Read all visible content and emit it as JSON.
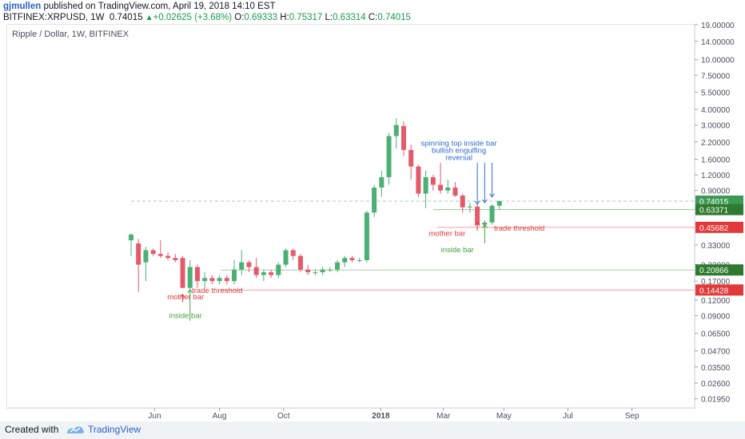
{
  "header": {
    "author": "gjmullen",
    "published_text": "published on TradingView.com, April 19, 2018 14:10 EST",
    "symbol": "BITFINEX:XRPUSD, 1W",
    "last": "0.74015",
    "change": "+0.02625 (+3.68%)",
    "open_label": "O:",
    "open": "0.69333",
    "high_label": "H:",
    "high": "0.75317",
    "low_label": "L:",
    "low": "0.63314",
    "close_label": "C:",
    "close": "0.74015"
  },
  "footer": {
    "created_with": "Created with",
    "brand": "TradingView"
  },
  "colors": {
    "up": "#4caf74",
    "down": "#e35a6b",
    "annotation_red": "#e23a3a",
    "annotation_green": "#45a045",
    "annotation_blue": "#2f6bd0",
    "price_label_green": "#3d9a55",
    "price_label_dark_green": "#2e7a2e",
    "price_label_red": "#e23a3a"
  },
  "chart_data": {
    "type": "candlestick",
    "title": "Ripple / Dollar, 1W, BITFINEX",
    "y_scale": "log",
    "ylim": [
      0.0165,
      19.0
    ],
    "x_scale": "weeks",
    "xlim_weeks": [
      0,
      58.5
    ],
    "x_tick_labels": [
      {
        "label": "Jun",
        "week": 3.2
      },
      {
        "label": "Aug",
        "week": 12.0
      },
      {
        "label": "Oct",
        "week": 20.7
      },
      {
        "label": "2018",
        "week": 33.9
      },
      {
        "label": "Mar",
        "week": 42.4
      },
      {
        "label": "May",
        "week": 50.6
      },
      {
        "label": "Jul",
        "week": 59.3
      },
      {
        "label": "Sep",
        "week": 68.0
      }
    ],
    "y_tick_labels": [
      "19.00000",
      "14.00000",
      "10.00000",
      "7.50000",
      "5.50000",
      "4.00000",
      "3.00000",
      "2.20000",
      "1.60000",
      "1.20000",
      "0.90000",
      "0.33000",
      "0.23000",
      "0.17000",
      "0.12000",
      "0.09000",
      "0.06500",
      "0.04700",
      "0.03500",
      "0.02600",
      "0.01950"
    ],
    "price_labels": [
      {
        "value": 0.74015,
        "text": "0.74015",
        "color": "#3d9a55"
      },
      {
        "value": 0.63371,
        "text": "0.63371",
        "color": "#2e7a2e"
      },
      {
        "value": 0.45682,
        "text": "0.45682",
        "color": "#e23a3a"
      },
      {
        "value": 0.20866,
        "text": "0.20866",
        "color": "#2e7a2e"
      },
      {
        "value": 0.14428,
        "text": "0.14428",
        "color": "#e23a3a"
      }
    ],
    "horizontal_lines": [
      {
        "value": 0.74015,
        "color": "#9fd3ae",
        "dashed": true,
        "from_week": 0
      },
      {
        "value": 0.63371,
        "color": "#9bc79b",
        "dashed": false,
        "from_week": 41
      },
      {
        "value": 0.45682,
        "color": "#f1a0a0",
        "dashed": false,
        "from_week": 41.5
      },
      {
        "value": 0.20866,
        "color": "#a8cfa8",
        "dashed": false,
        "from_week": 12.2
      },
      {
        "value": 0.14428,
        "color": "#f1a0a0",
        "dashed": false,
        "from_week": 12.2
      }
    ],
    "candles": [
      {
        "o": 0.36,
        "h": 0.41,
        "l": 0.27,
        "c": 0.4
      },
      {
        "o": 0.34,
        "h": 0.37,
        "l": 0.14,
        "c": 0.23
      },
      {
        "o": 0.24,
        "h": 0.32,
        "l": 0.17,
        "c": 0.3
      },
      {
        "o": 0.3,
        "h": 0.31,
        "l": 0.27,
        "c": 0.28
      },
      {
        "o": 0.28,
        "h": 0.36,
        "l": 0.26,
        "c": 0.27
      },
      {
        "o": 0.27,
        "h": 0.29,
        "l": 0.25,
        "c": 0.26
      },
      {
        "o": 0.26,
        "h": 0.28,
        "l": 0.24,
        "c": 0.25
      },
      {
        "o": 0.26,
        "h": 0.27,
        "l": 0.15,
        "c": 0.15
      },
      {
        "o": 0.15,
        "h": 0.25,
        "l": 0.14,
        "c": 0.22
      },
      {
        "o": 0.22,
        "h": 0.23,
        "l": 0.15,
        "c": 0.17
      },
      {
        "o": 0.17,
        "h": 0.2,
        "l": 0.15,
        "c": 0.18
      },
      {
        "o": 0.18,
        "h": 0.19,
        "l": 0.16,
        "c": 0.17
      },
      {
        "o": 0.17,
        "h": 0.19,
        "l": 0.16,
        "c": 0.18
      },
      {
        "o": 0.18,
        "h": 0.19,
        "l": 0.16,
        "c": 0.17
      },
      {
        "o": 0.17,
        "h": 0.25,
        "l": 0.16,
        "c": 0.21
      },
      {
        "o": 0.21,
        "h": 0.3,
        "l": 0.19,
        "c": 0.24
      },
      {
        "o": 0.24,
        "h": 0.25,
        "l": 0.2,
        "c": 0.22
      },
      {
        "o": 0.22,
        "h": 0.26,
        "l": 0.18,
        "c": 0.19
      },
      {
        "o": 0.19,
        "h": 0.21,
        "l": 0.17,
        "c": 0.2
      },
      {
        "o": 0.2,
        "h": 0.21,
        "l": 0.18,
        "c": 0.19
      },
      {
        "o": 0.19,
        "h": 0.24,
        "l": 0.18,
        "c": 0.23
      },
      {
        "o": 0.23,
        "h": 0.31,
        "l": 0.22,
        "c": 0.3
      },
      {
        "o": 0.3,
        "h": 0.31,
        "l": 0.25,
        "c": 0.27
      },
      {
        "o": 0.27,
        "h": 0.28,
        "l": 0.2,
        "c": 0.21
      },
      {
        "o": 0.21,
        "h": 0.23,
        "l": 0.19,
        "c": 0.2
      },
      {
        "o": 0.2,
        "h": 0.21,
        "l": 0.19,
        "c": 0.2
      },
      {
        "o": 0.2,
        "h": 0.22,
        "l": 0.19,
        "c": 0.21
      },
      {
        "o": 0.21,
        "h": 0.22,
        "l": 0.2,
        "c": 0.21
      },
      {
        "o": 0.21,
        "h": 0.25,
        "l": 0.2,
        "c": 0.24
      },
      {
        "o": 0.24,
        "h": 0.27,
        "l": 0.22,
        "c": 0.26
      },
      {
        "o": 0.26,
        "h": 0.27,
        "l": 0.24,
        "c": 0.25
      },
      {
        "o": 0.25,
        "h": 0.26,
        "l": 0.24,
        "c": 0.25
      },
      {
        "o": 0.25,
        "h": 0.62,
        "l": 0.24,
        "c": 0.6
      },
      {
        "o": 0.6,
        "h": 1.0,
        "l": 0.55,
        "c": 0.95
      },
      {
        "o": 0.95,
        "h": 1.3,
        "l": 0.8,
        "c": 1.15
      },
      {
        "o": 1.15,
        "h": 2.6,
        "l": 1.0,
        "c": 2.45
      },
      {
        "o": 2.45,
        "h": 3.4,
        "l": 1.95,
        "c": 3.0
      },
      {
        "o": 2.95,
        "h": 3.2,
        "l": 1.7,
        "c": 1.9
      },
      {
        "o": 1.9,
        "h": 2.1,
        "l": 1.1,
        "c": 1.4
      },
      {
        "o": 1.4,
        "h": 1.45,
        "l": 0.8,
        "c": 0.85
      },
      {
        "o": 0.85,
        "h": 1.3,
        "l": 0.65,
        "c": 1.15
      },
      {
        "o": 1.15,
        "h": 1.2,
        "l": 0.9,
        "c": 1.0
      },
      {
        "o": 1.0,
        "h": 1.5,
        "l": 0.85,
        "c": 0.9
      },
      {
        "o": 0.9,
        "h": 1.1,
        "l": 0.85,
        "c": 0.95
      },
      {
        "o": 0.95,
        "h": 1.05,
        "l": 0.8,
        "c": 0.82
      },
      {
        "o": 0.82,
        "h": 0.85,
        "l": 0.6,
        "c": 0.66
      },
      {
        "o": 0.66,
        "h": 0.72,
        "l": 0.6,
        "c": 0.67
      },
      {
        "o": 0.67,
        "h": 0.7,
        "l": 0.45,
        "c": 0.48
      },
      {
        "o": 0.48,
        "h": 0.52,
        "l": 0.46,
        "c": 0.5
      },
      {
        "o": 0.5,
        "h": 0.7,
        "l": 0.48,
        "c": 0.68
      },
      {
        "o": 0.68,
        "h": 0.75,
        "l": 0.63,
        "c": 0.74
      }
    ],
    "annotations": [
      {
        "text": "mother bar",
        "color": "#e23a3a",
        "week": 7.4,
        "value": 0.122
      },
      {
        "text": "inside bar",
        "color": "#45a045",
        "week": 7.4,
        "value": 0.086
      },
      {
        "text": "trade threshold",
        "color": "#e23a3a",
        "week": 11.7,
        "value": 0.137
      },
      {
        "text": "spinning top inside bar",
        "color": "#2f6bd0",
        "week": 44.5,
        "value": 2.05
      },
      {
        "text": "bullish engulfing",
        "color": "#2f6bd0",
        "week": 44.5,
        "value": 1.8
      },
      {
        "text": "reversal",
        "color": "#2f6bd0",
        "week": 44.5,
        "value": 1.58
      },
      {
        "text": "mother bar",
        "color": "#e23a3a",
        "week": 42.9,
        "value": 0.39
      },
      {
        "text": "inside bar",
        "color": "#45a045",
        "week": 44.3,
        "value": 0.29
      },
      {
        "text": "trade threshold",
        "color": "#e23a3a",
        "week": 52.7,
        "value": 0.43
      }
    ]
  }
}
